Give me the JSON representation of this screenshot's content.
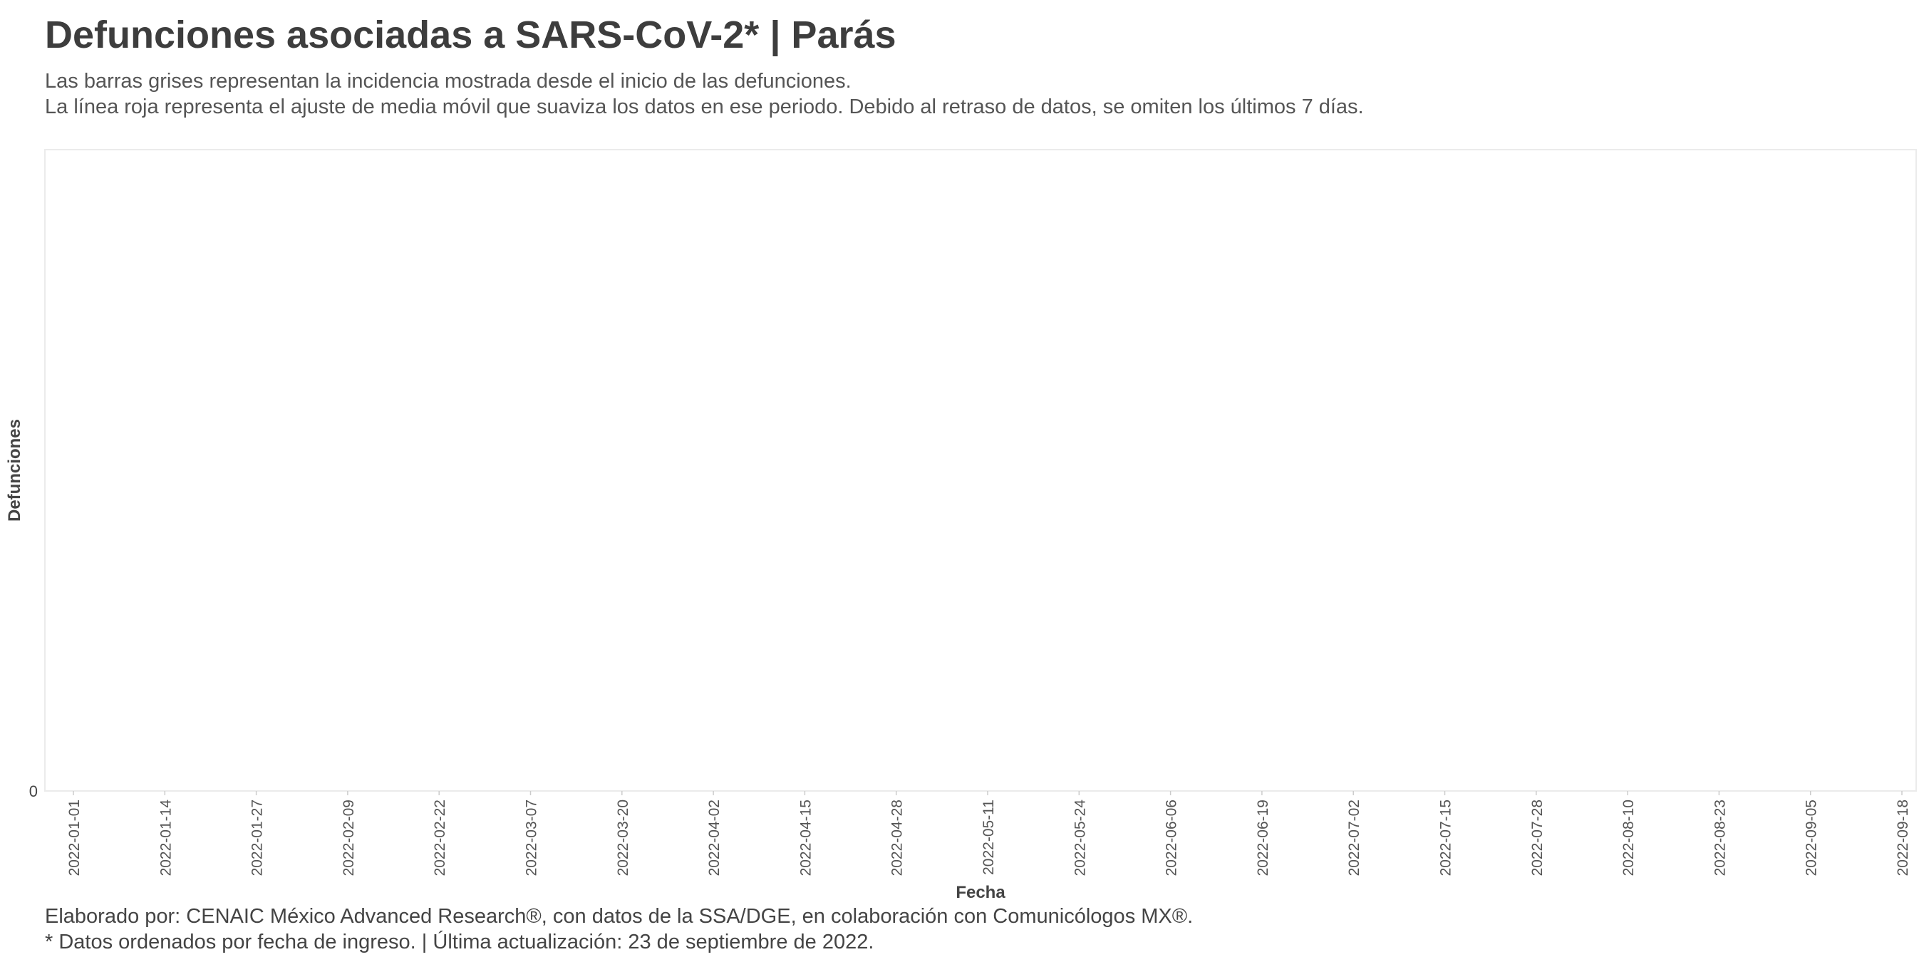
{
  "header": {
    "title": "Defunciones asociadas a SARS-CoV-2* | Parás",
    "subtitle_line1": "Las barras grises representan la incidencia mostrada desde el inicio de las defunciones.",
    "subtitle_line2": "La línea roja representa el ajuste de media móvil que suaviza los datos en ese periodo. Debido al retraso de datos, se omiten los últimos 7 días."
  },
  "footer": {
    "caption_line1": "Elaborado por: CENAIC México Advanced Research®, con datos de la SSA/DGE, en colaboración con Comunicólogos MX®.",
    "caption_line2": "* Datos ordenados por fecha de ingreso. | Última actualización: 23 de septiembre de 2022."
  },
  "chart_data": {
    "type": "bar",
    "xlabel": "Fecha",
    "ylabel": "Defunciones",
    "x_tick_labels": [
      "2022-01-01",
      "2022-01-14",
      "2022-01-27",
      "2022-02-09",
      "2022-02-22",
      "2022-03-07",
      "2022-03-20",
      "2022-04-02",
      "2022-04-15",
      "2022-04-28",
      "2022-05-11",
      "2022-05-24",
      "2022-06-06",
      "2022-06-19",
      "2022-07-02",
      "2022-07-15",
      "2022-07-28",
      "2022-08-10",
      "2022-08-23",
      "2022-09-05",
      "2022-09-18"
    ],
    "y_tick_labels": [
      "0"
    ],
    "xlim": [
      "2022-01-01",
      "2022-09-18"
    ],
    "ylim": [
      0,
      1
    ],
    "series": [],
    "grid": false,
    "colors": {
      "bars": "#bdbdbd",
      "moving_average": "#d7191c",
      "panel_border": "#ebebeb"
    }
  }
}
